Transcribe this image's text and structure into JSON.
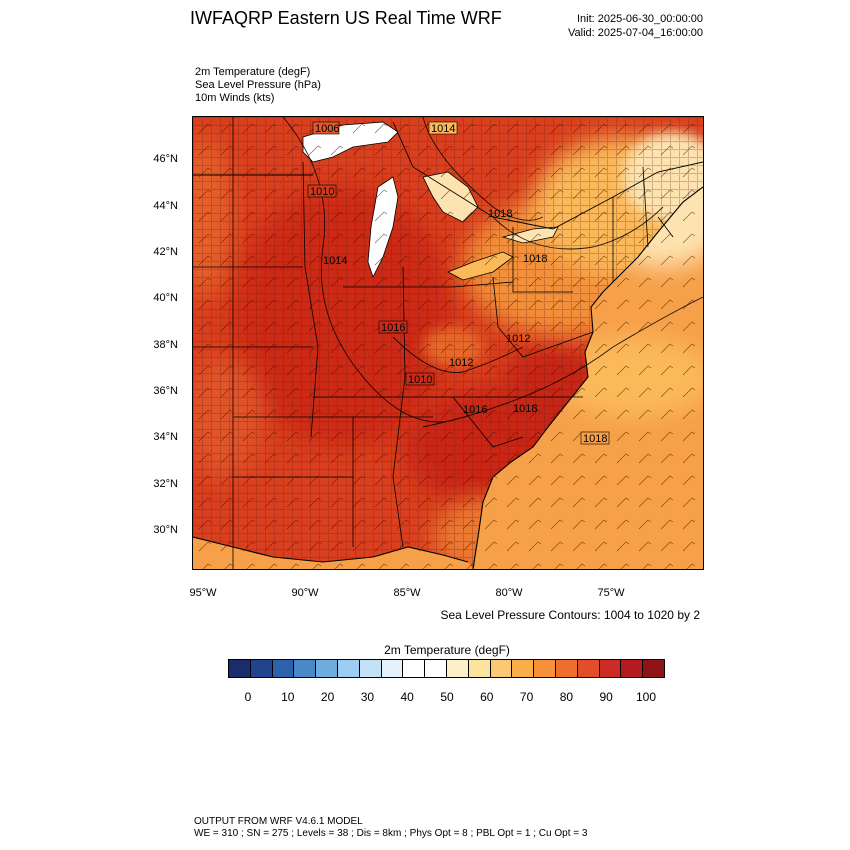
{
  "header": {
    "title": "IWFAQRP Eastern US Real Time WRF",
    "init": "Init: 2025-06-30_00:00:00",
    "valid": "Valid: 2025-07-04_16:00:00"
  },
  "variables": [
    "2m Temperature   (degF)",
    "Sea Level Pressure   (hPa)",
    "10m Winds   (kts)"
  ],
  "map": {
    "latitude_labels": [
      "46°N",
      "44°N",
      "42°N",
      "40°N",
      "38°N",
      "36°N",
      "34°N",
      "32°N",
      "30°N"
    ],
    "longitude_labels": [
      "95°W",
      "90°W",
      "85°W",
      "80°W",
      "75°W"
    ],
    "pressure_contour_labels": [
      "1006",
      "1014",
      "1010",
      "1014",
      "1018",
      "1018",
      "1016",
      "1012",
      "1010",
      "1012",
      "1016",
      "1018",
      "1018"
    ],
    "contour_note": "Sea Level Pressure Contours: 1004 to 1020 by 2",
    "colors": {
      "ocean": "#f6a04a",
      "hot": "#cc2a18",
      "warm": "#e2532a",
      "mild": "#fbb95a",
      "cool": "#fde3b0",
      "lake": "#ffffff"
    }
  },
  "colorbar": {
    "title": "2m Temperature  (degF)",
    "tick_labels": [
      "0",
      "10",
      "20",
      "30",
      "40",
      "50",
      "60",
      "70",
      "80",
      "90",
      "100"
    ],
    "colors": [
      "#1a2c6b",
      "#21448f",
      "#2d63ad",
      "#4a89c8",
      "#6cacdf",
      "#9dcdf1",
      "#c4e2f7",
      "#e5f2fb",
      "#ffffff",
      "#ffffff",
      "#fdf0c8",
      "#fde3a0",
      "#fcc873",
      "#fbad48",
      "#f6913a",
      "#ee6e2e",
      "#e24d2a",
      "#cd2c24",
      "#b31b1f",
      "#8e1419"
    ]
  },
  "footer": {
    "line1": "OUTPUT FROM WRF V4.6.1 MODEL",
    "line2": "WE = 310 ; SN = 275 ; Levels = 38 ; Dis = 8km ; Phys Opt = 8 ; PBL Opt = 1 ; Cu Opt = 3"
  }
}
